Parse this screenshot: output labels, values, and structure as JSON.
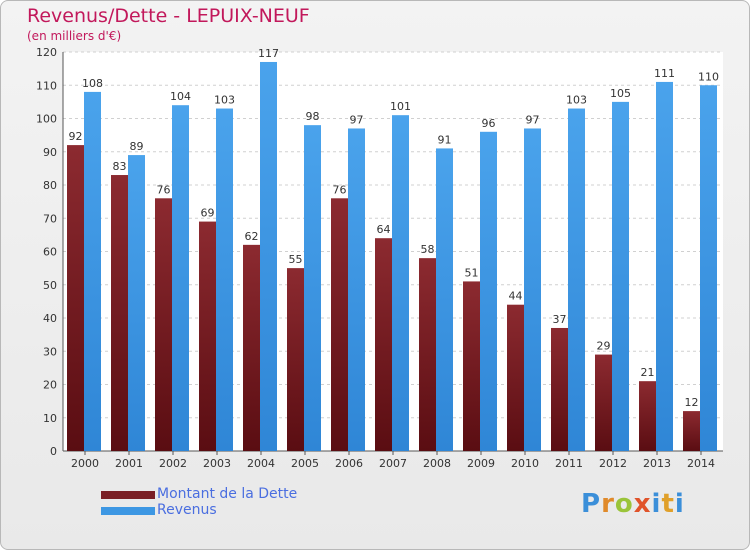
{
  "chart_data": {
    "type": "bar",
    "title": "Revenus/Dette - LEPUIX-NEUF",
    "subtitle": "(en milliers d'€)",
    "categories": [
      "2000",
      "2001",
      "2002",
      "2003",
      "2004",
      "2005",
      "2006",
      "2007",
      "2008",
      "2009",
      "2010",
      "2011",
      "2012",
      "2013",
      "2014"
    ],
    "series": [
      {
        "name": "Montant de la Dette",
        "color": "#7a1f25",
        "values": [
          92,
          83,
          76,
          69,
          62,
          55,
          76,
          64,
          58,
          51,
          44,
          37,
          29,
          21,
          12
        ]
      },
      {
        "name": "Revenus",
        "color": "#3d97e3",
        "values": [
          108,
          89,
          104,
          103,
          117,
          98,
          97,
          101,
          91,
          96,
          97,
          103,
          105,
          111,
          110
        ]
      }
    ],
    "ylim": [
      0,
      120
    ],
    "yticks": [
      0,
      10,
      20,
      30,
      40,
      50,
      60,
      70,
      80,
      90,
      100,
      110,
      120
    ],
    "grid": true,
    "legend_position": "bottom-left"
  },
  "logo": {
    "text": "Proxiti"
  }
}
